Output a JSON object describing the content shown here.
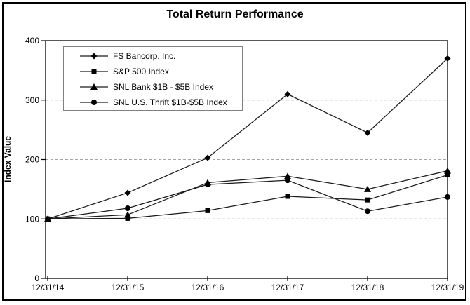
{
  "chart_data": {
    "type": "line",
    "title": "Total Return Performance",
    "ylabel": "Index Value",
    "xlabel": "",
    "categories": [
      "12/31/14",
      "12/31/15",
      "12/31/16",
      "12/31/17",
      "12/31/18",
      "12/31/19"
    ],
    "ylim": [
      0,
      400
    ],
    "yticks": [
      0,
      100,
      200,
      300,
      400
    ],
    "gridlines": {
      "y": [
        100,
        200,
        300
      ],
      "style": "dashed"
    },
    "legend_position": "top-left-inside",
    "line_color": "#1a1a1a",
    "grid_color": "#a6a6a6",
    "axis_color": "#000000",
    "series": [
      {
        "name": "FS Bancorp, Inc.",
        "marker": "diamond",
        "color": "#000000",
        "values": [
          100,
          144,
          203,
          310,
          245,
          370
        ]
      },
      {
        "name": "S&P 500 Index",
        "marker": "square",
        "color": "#000000",
        "values": [
          100,
          101,
          114,
          138,
          132,
          174
        ]
      },
      {
        "name": "SNL Bank $1B - $5B Index",
        "marker": "triangle",
        "color": "#000000",
        "values": [
          100,
          107,
          161,
          172,
          150,
          181
        ]
      },
      {
        "name": "SNL U.S. Thrift $1B-$5B Index",
        "marker": "circle",
        "color": "#000000",
        "values": [
          100,
          118,
          158,
          165,
          113,
          137
        ]
      }
    ]
  }
}
